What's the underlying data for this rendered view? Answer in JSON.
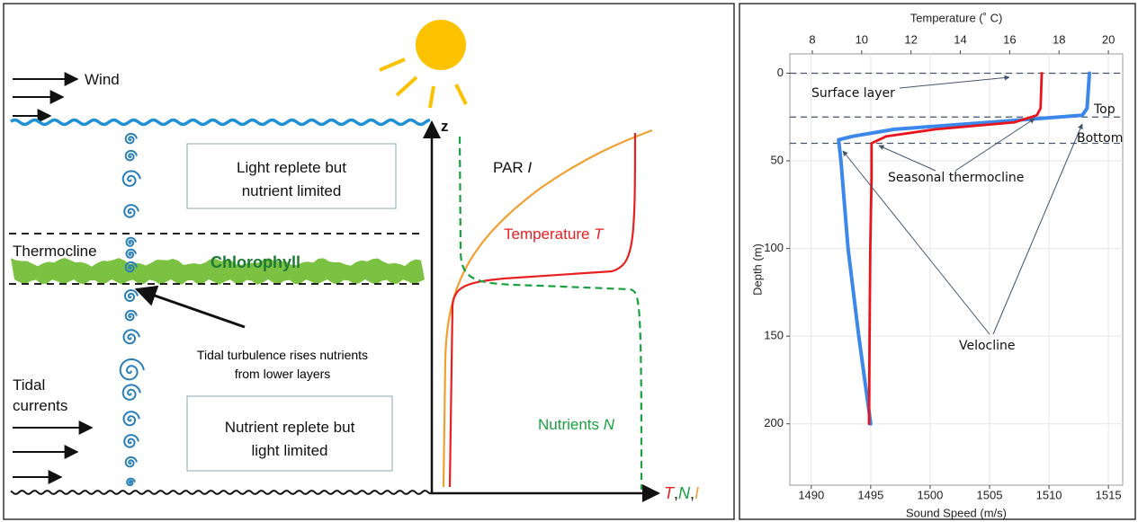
{
  "diagram": {
    "wind": "Wind",
    "axis_z": "z",
    "box_top": [
      "Light replete but",
      "nutrient limited"
    ],
    "thermocline": "Thermocline",
    "chlorophyll": "Chlorophyll",
    "par": [
      "PAR ",
      "I"
    ],
    "temperature": [
      "Temperature ",
      "T"
    ],
    "turbulence": [
      "Tidal turbulence rises nutrients",
      "from lower layers"
    ],
    "tidal": [
      "Tidal",
      "currents"
    ],
    "box_bottom": [
      "Nutrient replete but",
      "light limited"
    ],
    "nutrients": [
      "Nutrients ",
      "N"
    ],
    "axis_x": [
      "T",
      ",",
      "N",
      ",",
      "I"
    ]
  },
  "chart_data": {
    "type": "line",
    "title": "Temperature (˚ C)",
    "xlabel": "Sound Speed (m/s)",
    "ylabel": "Depth (m)",
    "xlim": [
      1488.2,
      1516.2
    ],
    "xticks": [
      1490,
      1495,
      1500,
      1505,
      1510,
      1515
    ],
    "x2lim": [
      7.09,
      20.58
    ],
    "x2ticks": [
      8,
      10,
      12,
      14,
      16,
      18,
      20
    ],
    "ylim": [
      -11,
      235
    ],
    "yticks": [
      0,
      50,
      100,
      150,
      200
    ],
    "y_inverted": true,
    "grid": true,
    "hlines": [
      0,
      25,
      40
    ],
    "series": [
      {
        "color": "#e8141c",
        "axis": "x2",
        "x": [
          17.3,
          17.25,
          17.1,
          16.2,
          13.0,
          11.0,
          10.4,
          10.4,
          10.35,
          10.32,
          10.3
        ],
        "y": [
          0,
          20,
          24,
          28,
          32,
          36,
          40,
          60,
          100,
          150,
          200
        ]
      },
      {
        "color": "#3c87ea",
        "x": [
          1513.4,
          1513.2,
          1512.8,
          1505,
          1497,
          1493.5,
          1492.3,
          1492.5,
          1493.1,
          1494.0,
          1495.0
        ],
        "y": [
          0,
          20,
          24,
          28,
          32,
          36,
          38,
          50,
          100,
          150,
          200
        ]
      }
    ],
    "annotations": [
      "Surface layer",
      "Top",
      "Bottom",
      "Seasonal thermocline",
      "Velocline"
    ]
  }
}
